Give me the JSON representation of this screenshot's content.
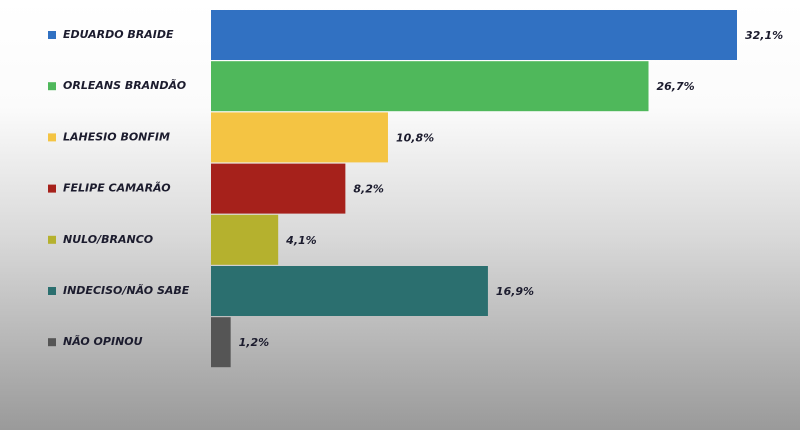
{
  "chart_data": {
    "type": "bar",
    "orientation": "horizontal",
    "categories": [
      "EDUARDO BRAIDE",
      "ORLEANS BRANDÃO",
      "LAHESIO BONFIM",
      "FELIPE CAMARÃO",
      "NULO/BRANCO",
      "INDECISO/NÃO SABE",
      "NÃO OPINOU"
    ],
    "values": [
      32.1,
      26.7,
      10.8,
      8.2,
      4.1,
      16.9,
      1.2
    ],
    "value_labels": [
      "32,1%",
      "26,7%",
      "10,8%",
      "8,2%",
      "4,1%",
      "16,9%",
      "1,2%"
    ],
    "colors": [
      "#3171c2",
      "#4fb85b",
      "#f4c443",
      "#a6211b",
      "#b5b12e",
      "#2b6f6f",
      "#555555"
    ]
  }
}
